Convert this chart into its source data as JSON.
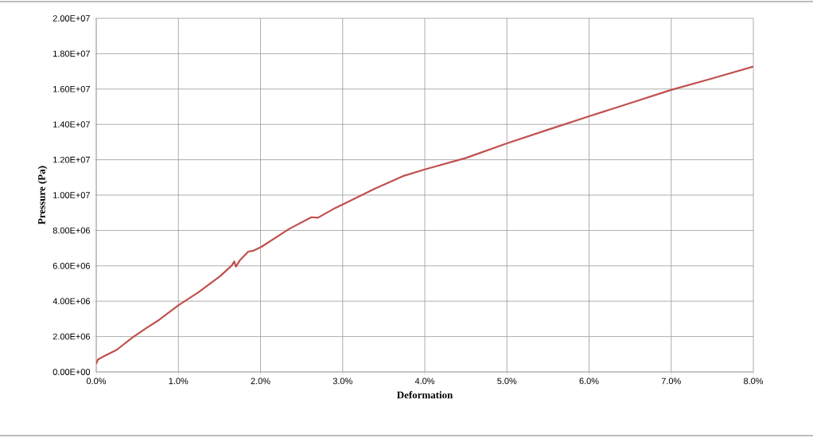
{
  "chart_data": {
    "type": "line",
    "xlabel": "Deformation",
    "ylabel": "Pressure (Pa)",
    "color": "#c0504d",
    "grid": true,
    "marker": "none",
    "line_style": "solid",
    "x": [
      0,
      0.02,
      0.1,
      0.25,
      0.44,
      0.6,
      0.765,
      1.0,
      1.25,
      1.51,
      1.65,
      1.68,
      1.7,
      1.75,
      1.85,
      1.91,
      2.01,
      2.35,
      2.62,
      2.7,
      2.9,
      3.0,
      3.39,
      3.75,
      4.0,
      4.5,
      5.0,
      5.5,
      6.0,
      6.5,
      7.0,
      7.5,
      8.0
    ],
    "values": [
      460000,
      700000,
      900000,
      1250000,
      1940000,
      2450000,
      2940000,
      3770000,
      4520000,
      5420000,
      6020000,
      6250000,
      5950000,
      6320000,
      6800000,
      6850000,
      7070000,
      8090000,
      8750000,
      8720000,
      9250000,
      9470000,
      10360000,
      11100000,
      11450000,
      12100000,
      12930000,
      13700000,
      14460000,
      15200000,
      15950000,
      16600000,
      17270000
    ],
    "xlim": [
      0,
      8
    ],
    "ylim": [
      0,
      20000000
    ],
    "xticks": [
      {
        "value": 0,
        "label": "0.0%"
      },
      {
        "value": 1,
        "label": "1.0%"
      },
      {
        "value": 2,
        "label": "2.0%"
      },
      {
        "value": 3,
        "label": "3.0%"
      },
      {
        "value": 4,
        "label": "4.0%"
      },
      {
        "value": 5,
        "label": "5.0%"
      },
      {
        "value": 6,
        "label": "6.0%"
      },
      {
        "value": 7,
        "label": "7.0%"
      },
      {
        "value": 8,
        "label": "8.0%"
      }
    ],
    "yticks": [
      {
        "value": 0,
        "label": "0.00E+00"
      },
      {
        "value": 2000000,
        "label": "2.00E+06"
      },
      {
        "value": 4000000,
        "label": "4.00E+06"
      },
      {
        "value": 6000000,
        "label": "6.00E+06"
      },
      {
        "value": 8000000,
        "label": "8.00E+06"
      },
      {
        "value": 10000000,
        "label": "1.00E+07"
      },
      {
        "value": 12000000,
        "label": "1.20E+07"
      },
      {
        "value": 14000000,
        "label": "1.40E+07"
      },
      {
        "value": 16000000,
        "label": "1.60E+07"
      },
      {
        "value": 18000000,
        "label": "1.80E+07"
      },
      {
        "value": 20000000,
        "label": "2.00E+07"
      }
    ]
  }
}
